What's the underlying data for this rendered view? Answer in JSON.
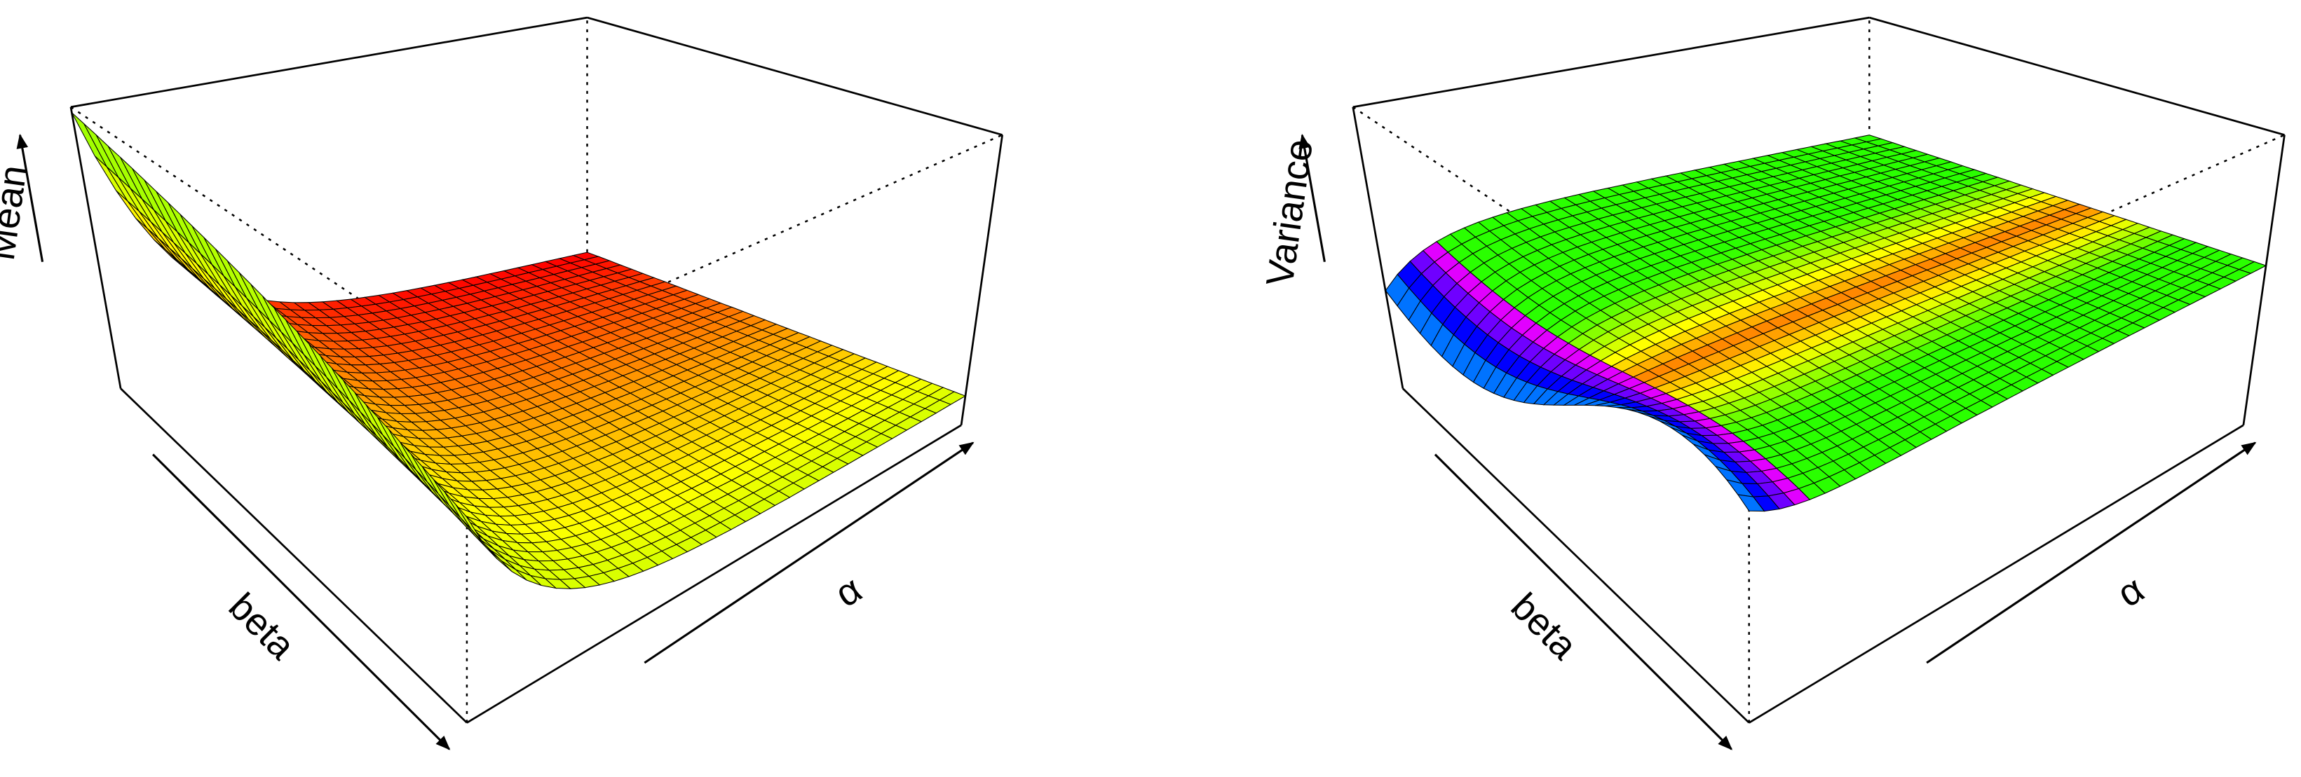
{
  "chart_data": [
    {
      "type": "surface",
      "xlabel": "α",
      "ylabel": "beta",
      "zlabel": "Mean"
    },
    {
      "type": "surface",
      "xlabel": "α",
      "ylabel": "beta",
      "zlabel": "Variance"
    }
  ]
}
